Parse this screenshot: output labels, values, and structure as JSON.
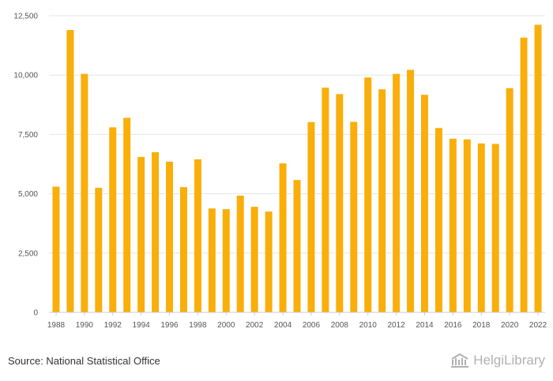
{
  "chart_data": {
    "type": "bar",
    "categories": [
      "1988",
      "1989",
      "1990",
      "1991",
      "1992",
      "1993",
      "1994",
      "1995",
      "1996",
      "1997",
      "1998",
      "1999",
      "2000",
      "2001",
      "2002",
      "2003",
      "2004",
      "2005",
      "2006",
      "2007",
      "2008",
      "2009",
      "2010",
      "2011",
      "2012",
      "2013",
      "2014",
      "2015",
      "2016",
      "2017",
      "2018",
      "2019",
      "2020",
      "2021",
      "2022"
    ],
    "x_tick_labels": [
      "1988",
      "1990",
      "1992",
      "1994",
      "1996",
      "1998",
      "2000",
      "2002",
      "2004",
      "2006",
      "2008",
      "2010",
      "2012",
      "2014",
      "2016",
      "2018",
      "2020",
      "2022"
    ],
    "values": [
      5300,
      11900,
      10050,
      5250,
      7800,
      8200,
      6550,
      6750,
      6350,
      5280,
      6450,
      4380,
      4350,
      4920,
      4450,
      4250,
      6280,
      5580,
      8020,
      9470,
      9200,
      8030,
      9900,
      9400,
      10050,
      10220,
      9170,
      7770,
      7320,
      7290,
      7120,
      7100,
      9450,
      11580,
      12120
    ],
    "ylim": [
      0,
      12500
    ],
    "y_ticks": [
      0,
      2500,
      5000,
      7500,
      10000,
      12500
    ],
    "y_tick_labels": [
      "0",
      "2,500",
      "5,000",
      "7,500",
      "10,000",
      "12,500"
    ],
    "grid": true,
    "bar_color": "#f9ae0a",
    "title": "",
    "xlabel": "",
    "ylabel": ""
  },
  "footer": {
    "source": "Source: National Statistical Office",
    "brand": "HelgiLibrary"
  }
}
